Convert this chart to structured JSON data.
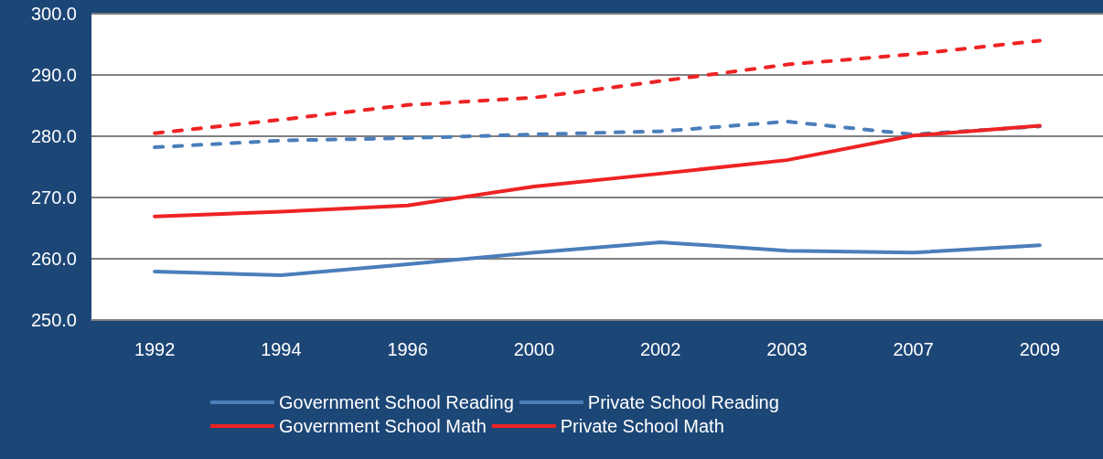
{
  "chart_data": {
    "type": "line",
    "categories": [
      "1992",
      "1994",
      "1996",
      "2000",
      "2002",
      "2003",
      "2007",
      "2009"
    ],
    "series": [
      {
        "name": "Government School Reading",
        "color": "#4a7ebb",
        "line_style": "solid",
        "values": [
          257.9,
          257.3,
          259.1,
          261.0,
          262.7,
          261.3,
          261.0,
          262.2
        ]
      },
      {
        "name": "Private School Reading",
        "color": "#4a7ebb",
        "line_style": "dashed",
        "values": [
          278.2,
          279.3,
          279.7,
          280.3,
          280.8,
          282.4,
          280.3,
          281.6
        ]
      },
      {
        "name": "Government School Math",
        "color": "#ee2324",
        "line_style": "solid",
        "values": [
          266.9,
          267.7,
          268.7,
          271.8,
          273.9,
          276.1,
          280.1,
          281.7
        ]
      },
      {
        "name": "Private School Math",
        "color": "#ee2324",
        "line_style": "dashed",
        "values": [
          280.5,
          282.7,
          285.1,
          286.3,
          289.0,
          291.7,
          293.4,
          295.6
        ]
      }
    ],
    "ylim": [
      250,
      300
    ],
    "yticks": [
      {
        "value": 250,
        "label": "250.0"
      },
      {
        "value": 260,
        "label": "260.0"
      },
      {
        "value": 270,
        "label": "270.0"
      },
      {
        "value": 280,
        "label": "280.0"
      },
      {
        "value": 290,
        "label": "290.0"
      },
      {
        "value": 300,
        "label": "300.0"
      }
    ],
    "grid": "y",
    "legend": "bottom",
    "marker": "none"
  }
}
